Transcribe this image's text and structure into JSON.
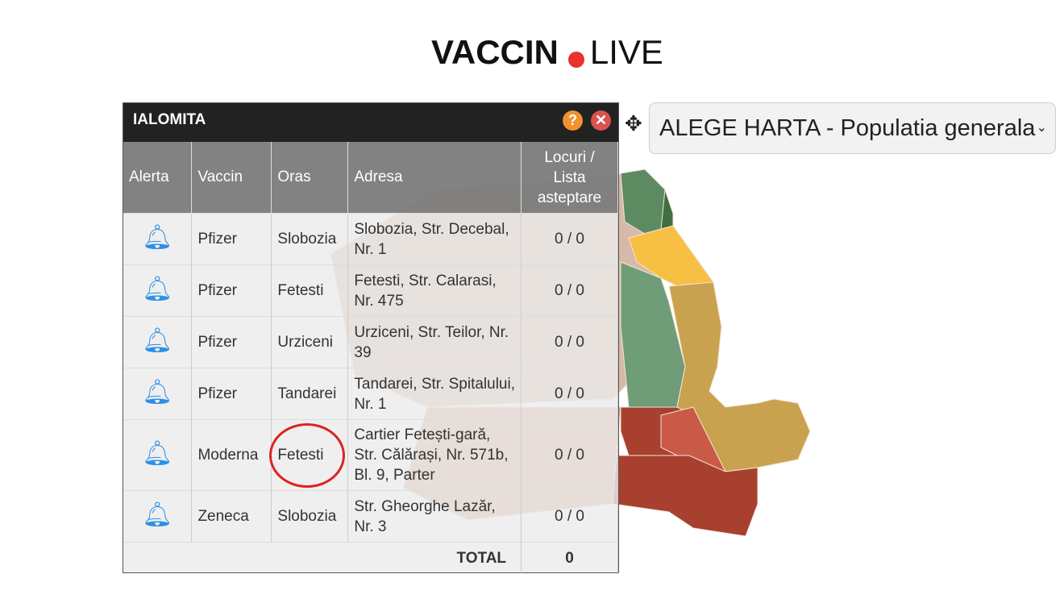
{
  "logo": {
    "bold": "VACCIN",
    "light": "LIVE",
    "dot_color": "#e8322a"
  },
  "map_select": {
    "value": "ALEGE HARTA - Populatia generala",
    "icon": "chevron-down-icon"
  },
  "popup": {
    "title": "IALOMITA",
    "help_label": "?",
    "close_label": "✕",
    "columns": [
      "Alerta",
      "Vaccin",
      "Oras",
      "Adresa",
      "Locuri / Lista asteptare"
    ],
    "rows": [
      {
        "vaccin": "Pfizer",
        "oras": "Slobozia",
        "adresa": "Slobozia, Str. Decebal, Nr. 1",
        "locuri": "0 / 0"
      },
      {
        "vaccin": "Pfizer",
        "oras": "Fetesti",
        "adresa": "Fetesti, Str. Calarasi, Nr. 475",
        "locuri": "0 / 0"
      },
      {
        "vaccin": "Pfizer",
        "oras": "Urziceni",
        "adresa": "Urziceni, Str. Teilor, Nr. 39",
        "locuri": "0 / 0"
      },
      {
        "vaccin": "Pfizer",
        "oras": "Tandarei",
        "adresa": "Tandarei, Str. Spitalului, Nr. 1",
        "locuri": "0 / 0"
      },
      {
        "vaccin": "Moderna",
        "oras": "Fetesti",
        "adresa": "Cartier Fetești-gară, Str. Călărași, Nr. 571b, Bl. 9, Parter",
        "locuri": "0 / 0"
      },
      {
        "vaccin": "Zeneca",
        "oras": "Slobozia",
        "adresa": "Str. Gheorghe Lazăr, Nr. 3",
        "locuri": "0 / 0"
      }
    ],
    "total_label": "TOTAL",
    "total_value": "0"
  },
  "colors": {
    "alert_bell": "#2d8fe6",
    "highlight_circle": "#dd2222"
  }
}
